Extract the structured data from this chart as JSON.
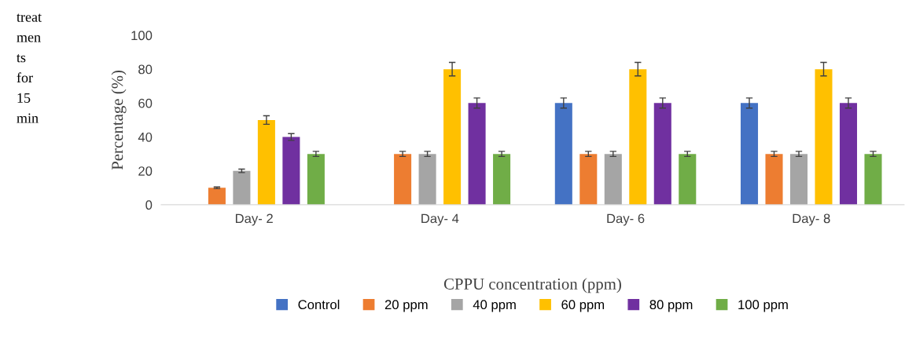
{
  "chart_data": {
    "type": "bar",
    "xlabel": "CPPU concentration (ppm)",
    "ylabel": "Percentage (%)",
    "categories": [
      "Day- 2",
      "Day- 4",
      "Day- 6",
      "Day- 8"
    ],
    "series": [
      {
        "name": "Control",
        "color": "#4472c4",
        "values": [
          0,
          0,
          60,
          60
        ],
        "errors": [
          null,
          null,
          3,
          3
        ]
      },
      {
        "name": "20 ppm",
        "color": "#ed7d31",
        "values": [
          10,
          30,
          30,
          30
        ],
        "errors": [
          0.5,
          1.5,
          1.5,
          1.5
        ]
      },
      {
        "name": "40 ppm",
        "color": "#a5a5a5",
        "values": [
          20,
          30,
          30,
          30
        ],
        "errors": [
          1,
          1.5,
          1.5,
          1.5
        ]
      },
      {
        "name": "60 ppm",
        "color": "#ffc000",
        "values": [
          50,
          80,
          80,
          80
        ],
        "errors": [
          2.5,
          4,
          4,
          4
        ]
      },
      {
        "name": "80 ppm",
        "color": "#7030a0",
        "values": [
          40,
          60,
          60,
          60
        ],
        "errors": [
          2,
          3,
          3,
          3
        ]
      },
      {
        "name": "100 ppm",
        "color": "#70ad47",
        "values": [
          30,
          30,
          30,
          30
        ],
        "errors": [
          1.5,
          1.5,
          1.5,
          1.5
        ]
      }
    ],
    "ylim": [
      0,
      100
    ],
    "yticks": [
      0,
      20,
      40,
      60,
      80,
      100
    ],
    "grid": false,
    "legend": "bottom",
    "annotations": [
      "treat\nmen\nts\nfor\n15\nmin"
    ]
  }
}
